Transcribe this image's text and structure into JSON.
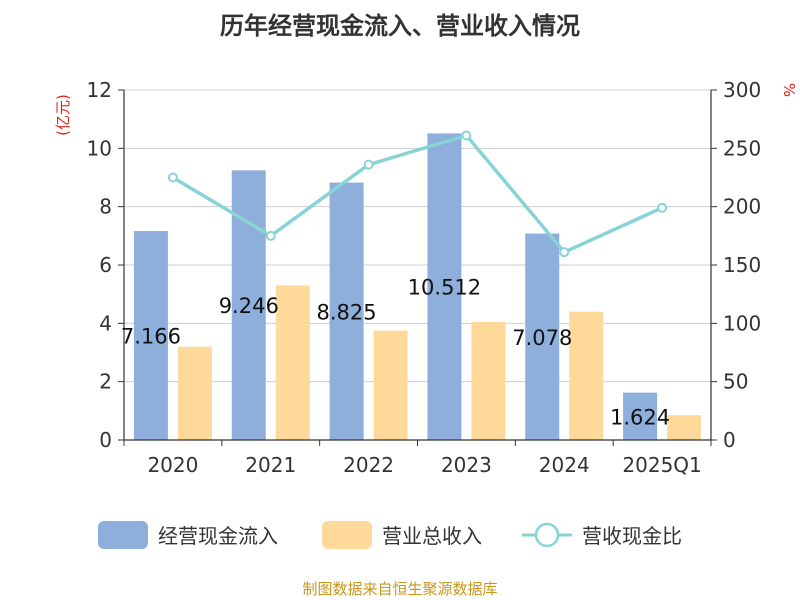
{
  "chart_data": {
    "type": "bar",
    "title": "历年经营现金流入、营业收入情况",
    "categories": [
      "2020",
      "2021",
      "2022",
      "2023",
      "2024",
      "2025Q1"
    ],
    "series": [
      {
        "name": "经营现金流入",
        "type": "bar",
        "axis": "left",
        "color": "#8eaedb",
        "values": [
          7.166,
          9.246,
          8.825,
          10.512,
          7.078,
          1.624
        ],
        "labels": [
          "7.166",
          "9.246",
          "8.825",
          "10.512",
          "7.078",
          "1.624"
        ]
      },
      {
        "name": "营业总收入",
        "type": "bar",
        "axis": "left",
        "color": "#ffd999",
        "values": [
          3.2,
          5.3,
          3.75,
          4.05,
          4.4,
          0.85
        ]
      },
      {
        "name": "营收现金比",
        "type": "line",
        "axis": "right",
        "color": "#88d3d6",
        "values": [
          225,
          175,
          236,
          261,
          161,
          199
        ]
      }
    ],
    "y_left": {
      "unit": "(亿元)",
      "min": 0,
      "max": 12,
      "ticks": [
        "0",
        "2",
        "4",
        "6",
        "8",
        "10",
        "12"
      ]
    },
    "y_right": {
      "unit": "%",
      "min": 0,
      "max": 300,
      "ticks": [
        "0",
        "50",
        "100",
        "150",
        "200",
        "250",
        "300"
      ]
    },
    "grid": true,
    "legend_position": "bottom",
    "source": "制图数据来自恒生聚源数据库"
  }
}
